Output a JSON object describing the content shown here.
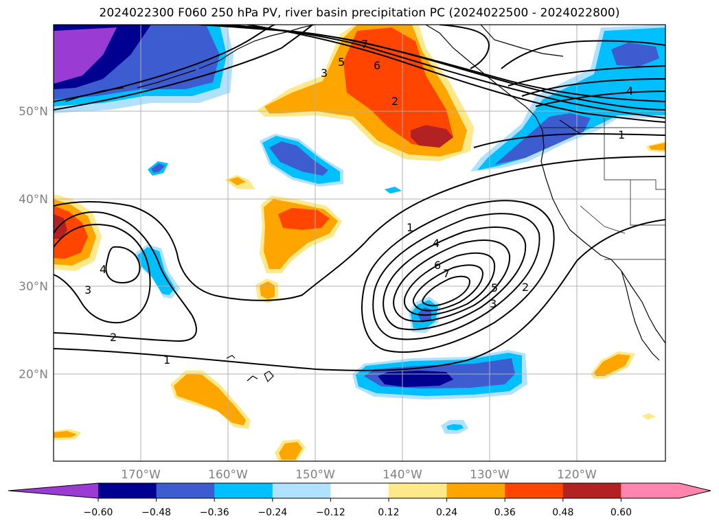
{
  "title": "2024022300 F060 250 hPa PV, river basin precipitation PC (2024022500 - 2024022800)",
  "map": {
    "lat_labels": [
      "50°N",
      "40°N",
      "30°N",
      "20°N"
    ],
    "lon_labels": [
      "170°W",
      "160°W",
      "150°W",
      "140°W",
      "130°W",
      "120°W"
    ],
    "contour_labels": [
      "7",
      "6",
      "5",
      "3",
      "2",
      "4",
      "1",
      "1",
      "4",
      "6",
      "7",
      "5",
      "3",
      "2",
      "4",
      "3",
      "2",
      "1"
    ]
  },
  "colorbar": {
    "ticks": [
      "−0.60",
      "−0.48",
      "−0.36",
      "−0.24",
      "−0.12",
      "0.12",
      "0.24",
      "0.36",
      "0.48",
      "0.60"
    ],
    "colors": [
      "#9a3cd3",
      "#000090",
      "#3c5cd0",
      "#00bfff",
      "#b0e2ff",
      "#ffffff",
      "#fde98a",
      "#ffa500",
      "#ff4500",
      "#b22222",
      "#ff85ae",
      "#ff85ae"
    ]
  }
}
